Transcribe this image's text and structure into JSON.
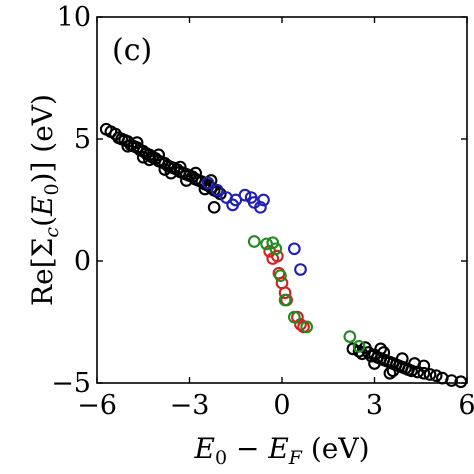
{
  "chart_data": {
    "type": "scatter",
    "panel_label": "(c)",
    "xlabel": "E_0 − E_F (eV)",
    "ylabel": "Re[Σ_c(E_0)] (eV)",
    "xlim": [
      -6,
      6
    ],
    "ylim": [
      -5,
      10
    ],
    "x_ticks": [
      -6,
      -3,
      0,
      3,
      6
    ],
    "x_tick_labels": [
      "−6",
      "−3",
      "0",
      "3",
      "6"
    ],
    "y_ticks": [
      -5,
      0,
      5,
      10
    ],
    "y_tick_labels": [
      "−5",
      "0",
      "5",
      "10"
    ],
    "grid": false,
    "colors": {
      "black": "#000000",
      "blue": "#1f1fb4",
      "red": "#d42020",
      "green": "#1e8c1e"
    },
    "series": [
      {
        "color_key": "black",
        "points": [
          [
            -5.7,
            5.4
          ],
          [
            -5.55,
            5.3
          ],
          [
            -5.4,
            5.2
          ],
          [
            -5.3,
            5.05
          ],
          [
            -5.2,
            5.0
          ],
          [
            -5.1,
            4.95
          ],
          [
            -5.0,
            4.9
          ],
          [
            -4.9,
            4.75
          ],
          [
            -4.8,
            4.7
          ],
          [
            -4.7,
            4.65
          ],
          [
            -4.6,
            4.55
          ],
          [
            -4.5,
            4.5
          ],
          [
            -4.4,
            4.4
          ],
          [
            -4.3,
            4.35
          ],
          [
            -4.2,
            4.25
          ],
          [
            -4.1,
            4.2
          ],
          [
            -4.0,
            4.1
          ],
          [
            -3.9,
            4.05
          ],
          [
            -3.8,
            4.0
          ],
          [
            -3.7,
            3.9
          ],
          [
            -3.6,
            3.85
          ],
          [
            -3.5,
            3.8
          ],
          [
            -3.4,
            3.75
          ],
          [
            -3.3,
            3.65
          ],
          [
            -3.2,
            3.6
          ],
          [
            -3.1,
            3.55
          ],
          [
            -3.0,
            3.5
          ],
          [
            -2.9,
            3.45
          ],
          [
            -2.8,
            3.35
          ],
          [
            -2.7,
            3.3
          ],
          [
            -2.6,
            3.25
          ],
          [
            -2.5,
            3.15
          ],
          [
            -2.4,
            3.1
          ],
          [
            -2.3,
            3.0
          ],
          [
            -2.2,
            2.9
          ],
          [
            -2.1,
            2.85
          ],
          [
            -2.0,
            2.75
          ],
          [
            -2.2,
            2.2
          ],
          [
            -5.0,
            4.7
          ],
          [
            -4.7,
            4.85
          ],
          [
            -4.3,
            4.15
          ],
          [
            -4.0,
            4.35
          ],
          [
            -3.6,
            3.6
          ],
          [
            -3.3,
            3.85
          ],
          [
            -3.1,
            3.3
          ],
          [
            -2.8,
            3.6
          ],
          [
            -2.5,
            2.95
          ],
          [
            -2.3,
            3.3
          ],
          [
            -4.5,
            4.25
          ],
          [
            -3.8,
            3.75
          ],
          [
            2.3,
            -3.6
          ],
          [
            2.5,
            -3.7
          ],
          [
            2.6,
            -3.8
          ],
          [
            2.8,
            -3.75
          ],
          [
            2.9,
            -3.9
          ],
          [
            3.0,
            -3.85
          ],
          [
            3.1,
            -3.95
          ],
          [
            3.2,
            -4.0
          ],
          [
            3.3,
            -4.05
          ],
          [
            3.4,
            -4.1
          ],
          [
            3.5,
            -4.15
          ],
          [
            3.6,
            -4.2
          ],
          [
            3.7,
            -4.25
          ],
          [
            3.8,
            -4.3
          ],
          [
            3.9,
            -4.35
          ],
          [
            4.0,
            -4.4
          ],
          [
            4.1,
            -4.45
          ],
          [
            4.2,
            -4.5
          ],
          [
            4.4,
            -4.55
          ],
          [
            4.6,
            -4.6
          ],
          [
            4.8,
            -4.65
          ],
          [
            5.0,
            -4.7
          ],
          [
            5.2,
            -4.8
          ],
          [
            5.5,
            -4.9
          ],
          [
            5.8,
            -4.95
          ],
          [
            2.7,
            -3.55
          ],
          [
            3.3,
            -3.75
          ],
          [
            3.6,
            -4.5
          ],
          [
            3.9,
            -4.0
          ],
          [
            4.3,
            -4.2
          ],
          [
            3.0,
            -4.2
          ],
          [
            3.5,
            -4.6
          ],
          [
            4.6,
            -4.3
          ],
          [
            3.2,
            -3.6
          ]
        ]
      },
      {
        "color_key": "blue",
        "points": [
          [
            -2.4,
            3.2
          ],
          [
            -2.1,
            2.9
          ],
          [
            -1.8,
            2.6
          ],
          [
            -1.5,
            2.5
          ],
          [
            -1.2,
            2.7
          ],
          [
            -0.9,
            2.4
          ],
          [
            -0.7,
            2.2
          ],
          [
            -0.6,
            2.5
          ],
          [
            -1.0,
            2.6
          ],
          [
            -1.6,
            2.3
          ],
          [
            0.4,
            0.5
          ],
          [
            0.6,
            -0.35
          ]
        ]
      },
      {
        "color_key": "red",
        "points": [
          [
            -0.3,
            0.1
          ],
          [
            -0.1,
            -0.5
          ],
          [
            0.0,
            -0.9
          ],
          [
            0.1,
            -1.3
          ],
          [
            0.15,
            -1.6
          ],
          [
            0.5,
            -2.3
          ],
          [
            0.6,
            -2.6
          ],
          [
            0.7,
            -2.7
          ],
          [
            -0.15,
            0.2
          ],
          [
            -0.4,
            0.4
          ]
        ]
      },
      {
        "color_key": "green",
        "points": [
          [
            -0.9,
            0.8
          ],
          [
            -0.5,
            0.7
          ],
          [
            -0.2,
            0.5
          ],
          [
            -0.05,
            -0.6
          ],
          [
            0.1,
            -1.6
          ],
          [
            0.4,
            -2.3
          ],
          [
            0.8,
            -2.7
          ],
          [
            2.2,
            -3.1
          ],
          [
            2.5,
            -3.5
          ],
          [
            -0.3,
            0.75
          ]
        ]
      }
    ]
  }
}
